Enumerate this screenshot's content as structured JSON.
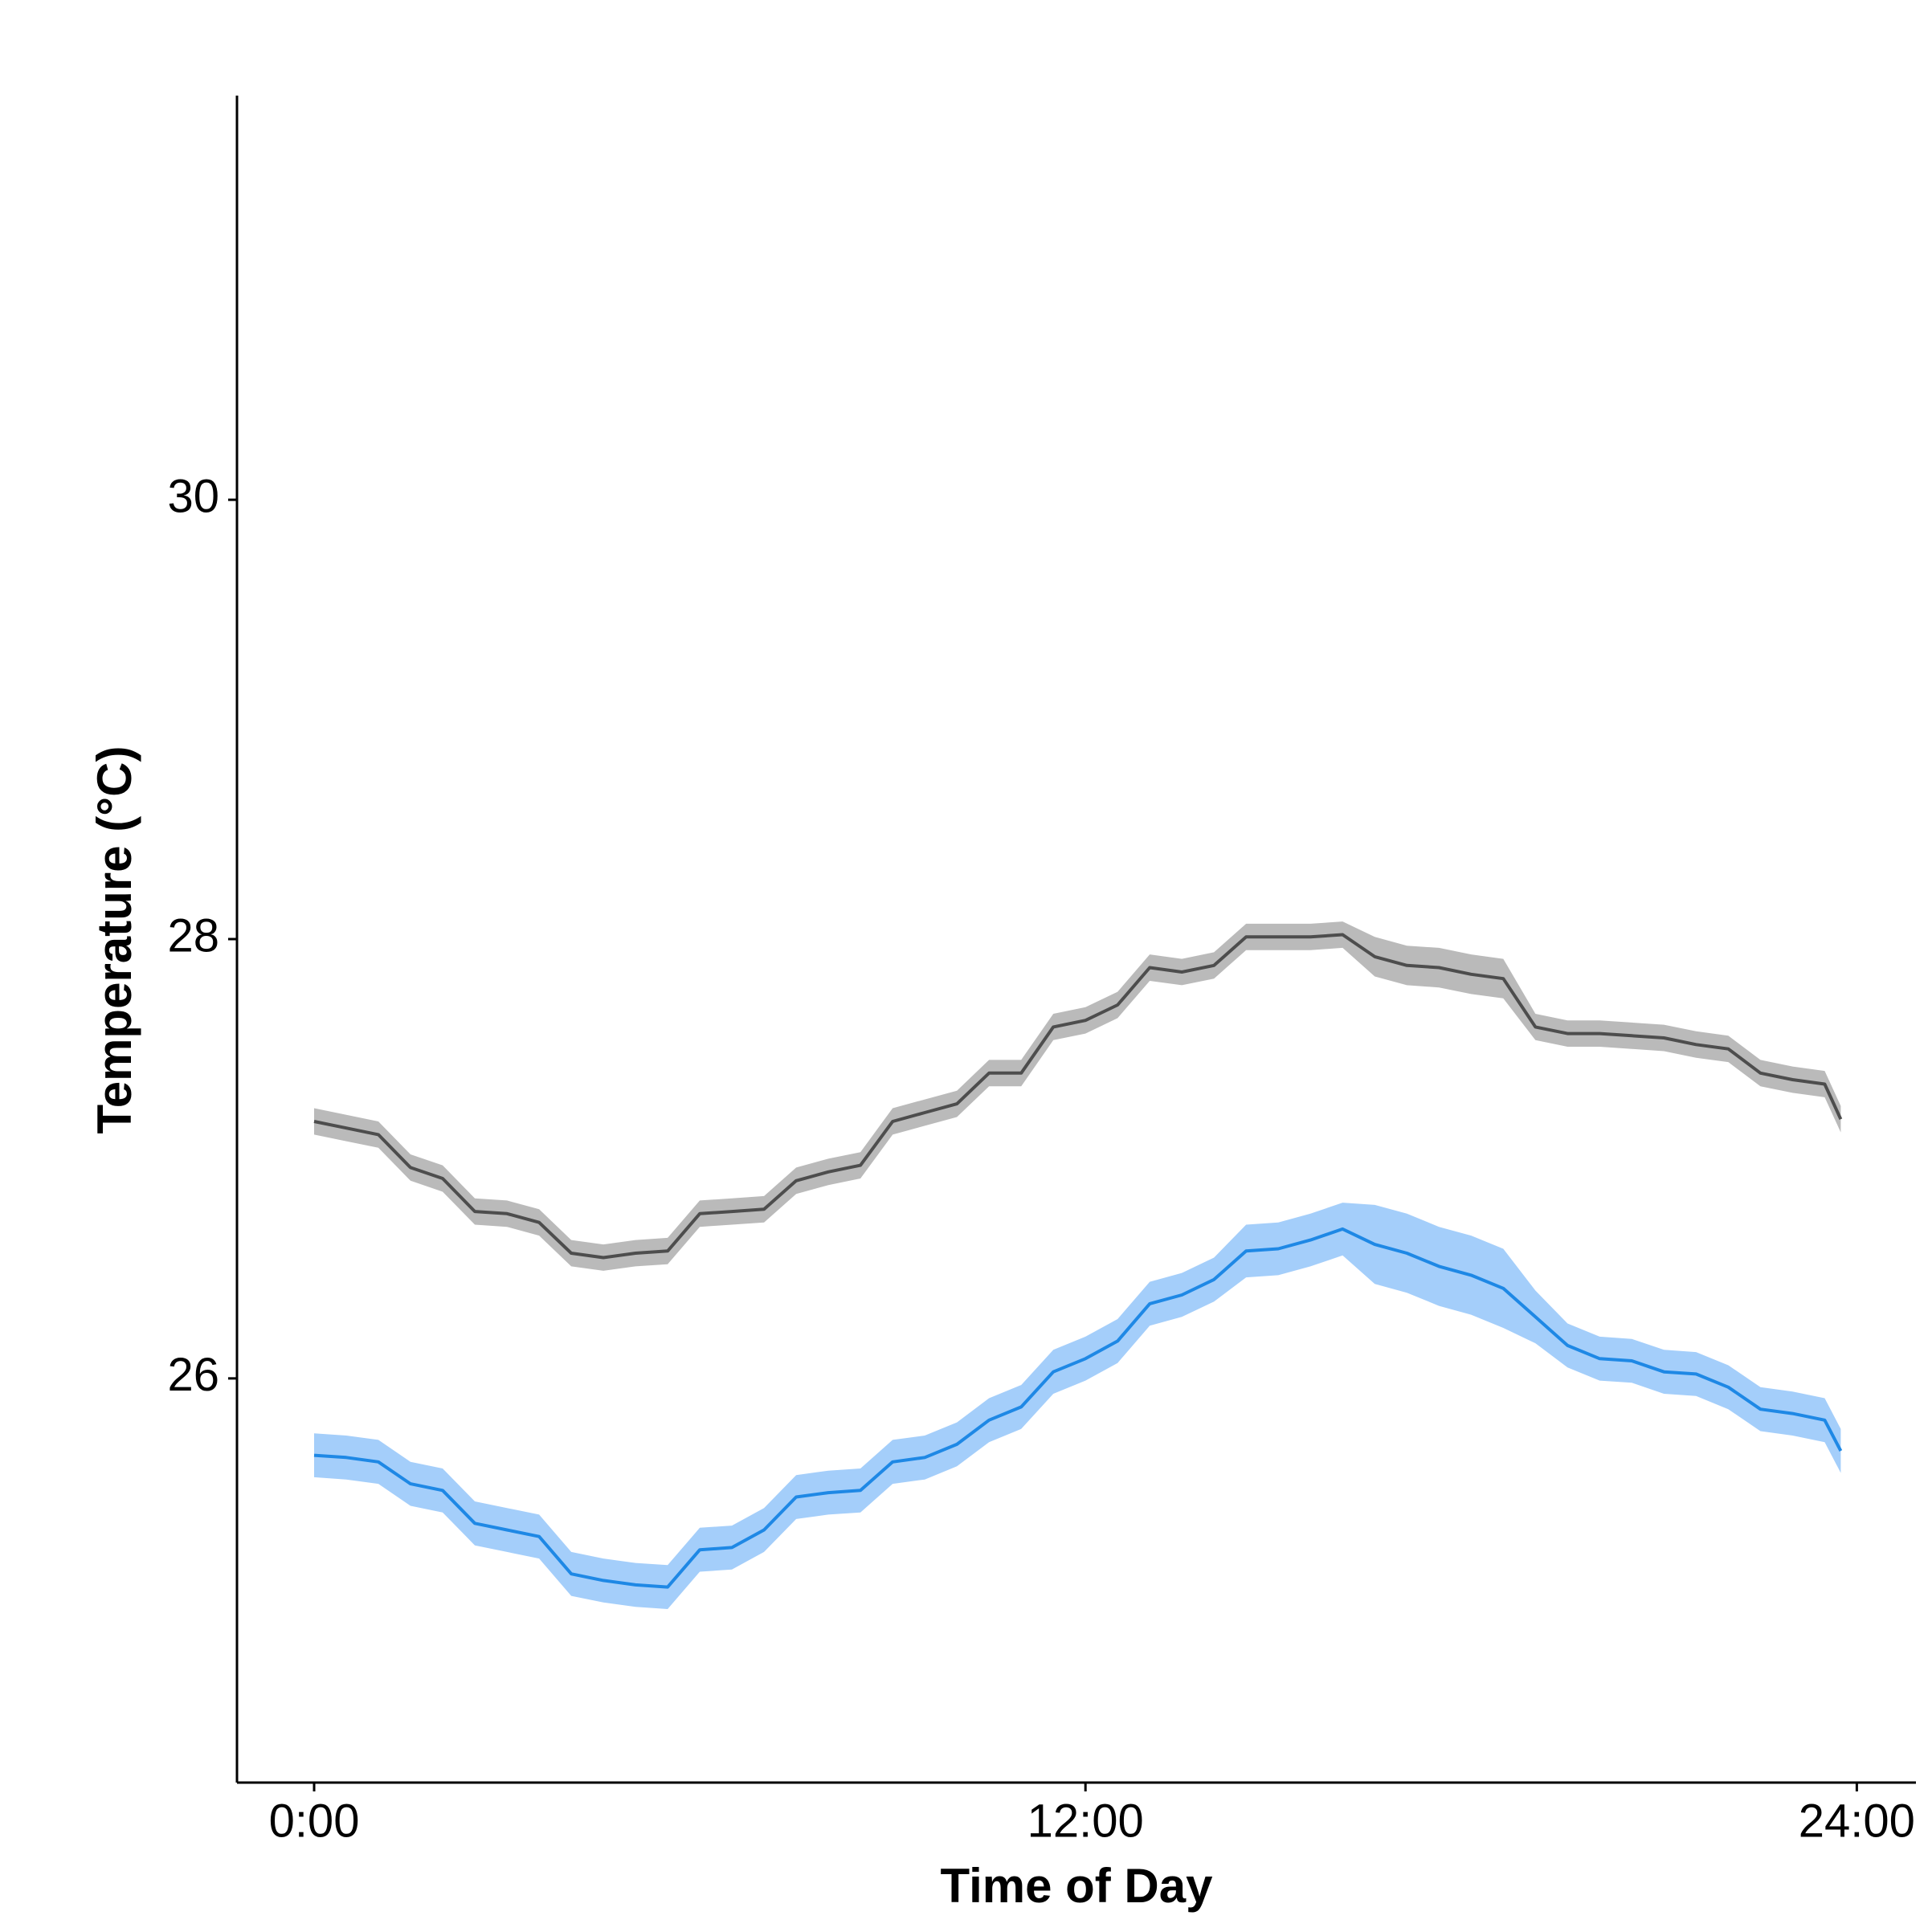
{
  "chart_data": {
    "type": "line",
    "x_label": "Time of Day",
    "y_label": "Temperature (°C)",
    "x": [
      0,
      0.5,
      1,
      1.5,
      2,
      2.5,
      3,
      3.5,
      4,
      4.5,
      5,
      5.5,
      6,
      6.5,
      7,
      7.5,
      8,
      8.5,
      9,
      9.5,
      10,
      10.5,
      11,
      11.5,
      12,
      12.5,
      13,
      13.5,
      14,
      14.5,
      15,
      15.5,
      16,
      16.5,
      17,
      17.5,
      18,
      18.5,
      19,
      19.5,
      20,
      20.5,
      21,
      21.5,
      22,
      22.5,
      23,
      23.5,
      23.75
    ],
    "xlim": [
      -1.2,
      24.92
    ],
    "xticks": [
      {
        "value": 0,
        "label": "0:00"
      },
      {
        "value": 12,
        "label": "12:00"
      },
      {
        "value": 24,
        "label": "24:00"
      }
    ],
    "ylim": [
      24.16,
      31.84
    ],
    "yticks": [
      26,
      28,
      30
    ],
    "series": [
      {
        "color": "#4d4d4d",
        "band_color": "#bababa",
        "values": [
          27.17,
          27.14,
          27.11,
          26.96,
          26.91,
          26.76,
          26.75,
          26.71,
          26.57,
          26.55,
          26.57,
          26.58,
          26.75,
          26.76,
          26.77,
          26.9,
          26.94,
          26.97,
          27.17,
          27.21,
          27.25,
          27.39,
          27.39,
          27.6,
          27.63,
          27.7,
          27.87,
          27.85,
          27.88,
          28.01,
          28.01,
          28.01,
          28.02,
          27.92,
          27.88,
          27.87,
          27.84,
          27.82,
          27.6,
          27.57,
          27.57,
          27.56,
          27.55,
          27.52,
          27.5,
          27.39,
          27.36,
          27.34,
          27.18
        ],
        "ci": [
          0.06,
          0.06,
          0.06,
          0.06,
          0.06,
          0.06,
          0.06,
          0.06,
          0.06,
          0.06,
          0.06,
          0.06,
          0.06,
          0.06,
          0.06,
          0.06,
          0.06,
          0.06,
          0.06,
          0.06,
          0.06,
          0.06,
          0.06,
          0.06,
          0.06,
          0.06,
          0.06,
          0.06,
          0.06,
          0.06,
          0.06,
          0.06,
          0.06,
          0.09,
          0.09,
          0.09,
          0.09,
          0.09,
          0.06,
          0.06,
          0.06,
          0.06,
          0.06,
          0.06,
          0.06,
          0.06,
          0.06,
          0.06,
          0.06
        ]
      },
      {
        "color": "#1e88e5",
        "band_color": "#a4cefa",
        "values": [
          25.65,
          25.64,
          25.62,
          25.52,
          25.49,
          25.34,
          25.31,
          25.28,
          25.11,
          25.08,
          25.06,
          25.05,
          25.22,
          25.23,
          25.31,
          25.46,
          25.48,
          25.49,
          25.62,
          25.64,
          25.7,
          25.81,
          25.87,
          26.03,
          26.09,
          26.17,
          26.34,
          26.38,
          26.45,
          26.58,
          26.59,
          26.63,
          26.68,
          26.61,
          26.57,
          26.51,
          26.47,
          26.41,
          26.28,
          26.15,
          26.09,
          26.08,
          26.03,
          26.02,
          25.96,
          25.86,
          25.84,
          25.81,
          25.67
        ],
        "ci": [
          0.1,
          0.1,
          0.1,
          0.1,
          0.1,
          0.1,
          0.1,
          0.1,
          0.1,
          0.1,
          0.1,
          0.1,
          0.1,
          0.1,
          0.1,
          0.1,
          0.1,
          0.1,
          0.1,
          0.1,
          0.1,
          0.1,
          0.1,
          0.1,
          0.1,
          0.1,
          0.1,
          0.1,
          0.1,
          0.12,
          0.12,
          0.12,
          0.12,
          0.18,
          0.18,
          0.18,
          0.18,
          0.18,
          0.12,
          0.1,
          0.1,
          0.1,
          0.1,
          0.1,
          0.1,
          0.1,
          0.1,
          0.1,
          0.1
        ]
      }
    ]
  }
}
